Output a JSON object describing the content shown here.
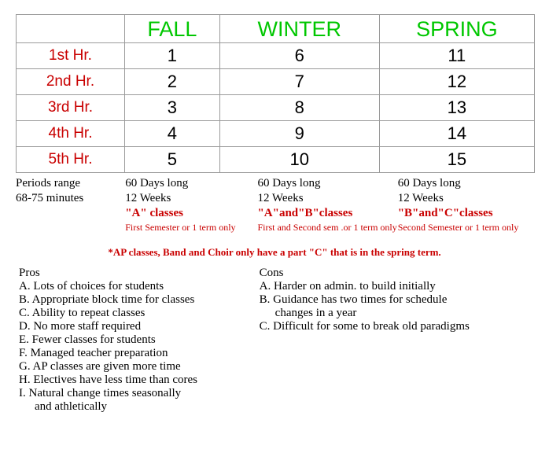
{
  "table": {
    "columns": [
      "FALL",
      "WINTER",
      "SPRING"
    ],
    "rows": [
      {
        "label": "1st Hr.",
        "cells": [
          "1",
          "6",
          "11"
        ]
      },
      {
        "label": "2nd Hr.",
        "cells": [
          "2",
          "7",
          "12"
        ]
      },
      {
        "label": "3rd Hr.",
        "cells": [
          "3",
          "8",
          "13"
        ]
      },
      {
        "label": "4th Hr.",
        "cells": [
          "4",
          "9",
          "14"
        ]
      },
      {
        "label": "5th Hr.",
        "cells": [
          "5",
          "10",
          "15"
        ]
      }
    ]
  },
  "info": {
    "periods_label": "Periods range",
    "minutes_label": "68-75 minutes",
    "days": "60 Days long",
    "weeks": "12 Weeks",
    "a_class": "\"A\" classes",
    "ab_class": "\"A\"and\"B\"classes",
    "bc_class": "\"B\"and\"C\"classes",
    "a_sub": "First Semester or 1 term only",
    "ab_sub": "First and Second sem .or 1 term only",
    "bc_sub": "Second Semester or 1 term only"
  },
  "ap_note": "*AP classes, Band and Choir only have a part \"C\" that is in the spring term.",
  "pros": {
    "title": "Pros",
    "items": [
      "A. Lots of choices for students",
      "B. Appropriate block time for classes",
      "C. Ability to repeat classes",
      "D. No more staff required",
      "E. Fewer classes for students",
      "F. Managed teacher preparation",
      "G. AP classes are given more time",
      "H. Electives have less time than cores",
      "I. Natural change times seasonally",
      "    and athletically"
    ]
  },
  "cons": {
    "title": "Cons",
    "items": [
      "A. Harder on admin. to build initially",
      "B. Guidance has two times for schedule",
      "     changes in a year",
      "C. Difficult for some to break old paradigms"
    ]
  }
}
